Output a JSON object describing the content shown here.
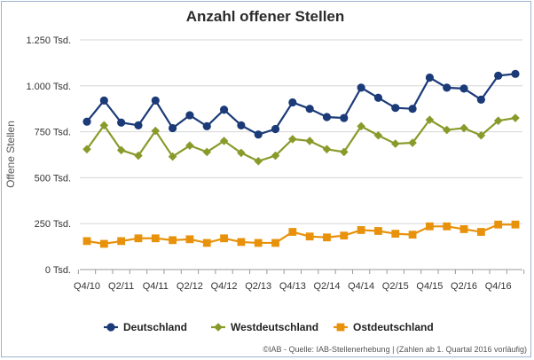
{
  "chart_data": {
    "type": "line",
    "title": "Anzahl offener Stellen",
    "ylabel": "Offene Stellen",
    "xlabel": "",
    "ylim": [
      0,
      1250
    ],
    "yticks": [
      0,
      250,
      500,
      750,
      1000,
      1250
    ],
    "ytick_labels": [
      "0 Tsd.",
      "250 Tsd.",
      "500 Tsd.",
      "750 Tsd.",
      "1.000 Tsd.",
      "1.250 Tsd."
    ],
    "grid": true,
    "legend_position": "bottom",
    "categories": [
      "Q4/10",
      "Q1/11",
      "Q2/11",
      "Q3/11",
      "Q4/11",
      "Q1/12",
      "Q2/12",
      "Q3/12",
      "Q4/12",
      "Q1/13",
      "Q2/13",
      "Q3/13",
      "Q4/13",
      "Q1/14",
      "Q2/14",
      "Q3/14",
      "Q4/14",
      "Q1/15",
      "Q2/15",
      "Q3/15",
      "Q4/15",
      "Q1/16",
      "Q2/16",
      "Q3/16",
      "Q4/16",
      "Q1/17"
    ],
    "xtick_labels": [
      "Q4/10",
      "",
      "Q2/11",
      "",
      "Q4/11",
      "",
      "Q2/12",
      "",
      "Q4/12",
      "",
      "Q2/13",
      "",
      "Q4/13",
      "",
      "Q2/14",
      "",
      "Q4/14",
      "",
      "Q2/15",
      "",
      "Q4/15",
      "",
      "Q2/16",
      "",
      "Q4/16",
      ""
    ],
    "series": [
      {
        "name": "Deutschland",
        "color": "#1a3a78",
        "marker": "circle",
        "values": [
          805,
          920,
          800,
          785,
          920,
          770,
          840,
          780,
          870,
          785,
          735,
          765,
          910,
          875,
          830,
          825,
          990,
          935,
          880,
          875,
          1045,
          990,
          985,
          925,
          1055,
          1065
        ]
      },
      {
        "name": "Westdeutschland",
        "color": "#8a9a2a",
        "marker": "diamond",
        "values": [
          655,
          785,
          650,
          620,
          755,
          615,
          675,
          640,
          700,
          635,
          590,
          620,
          710,
          700,
          655,
          640,
          780,
          730,
          685,
          690,
          815,
          760,
          770,
          730,
          810,
          825
        ]
      },
      {
        "name": "Ostdeutschland",
        "color": "#e8920c",
        "marker": "square",
        "values": [
          155,
          140,
          155,
          170,
          170,
          160,
          165,
          145,
          170,
          150,
          145,
          145,
          205,
          180,
          175,
          185,
          215,
          210,
          195,
          190,
          235,
          235,
          220,
          205,
          245,
          245
        ]
      }
    ]
  },
  "footer": {
    "credit": "©IAB - Quelle: IAB-Stellenerhebung | (Zahlen ab 1. Quartal 2016 vorläufig)"
  }
}
